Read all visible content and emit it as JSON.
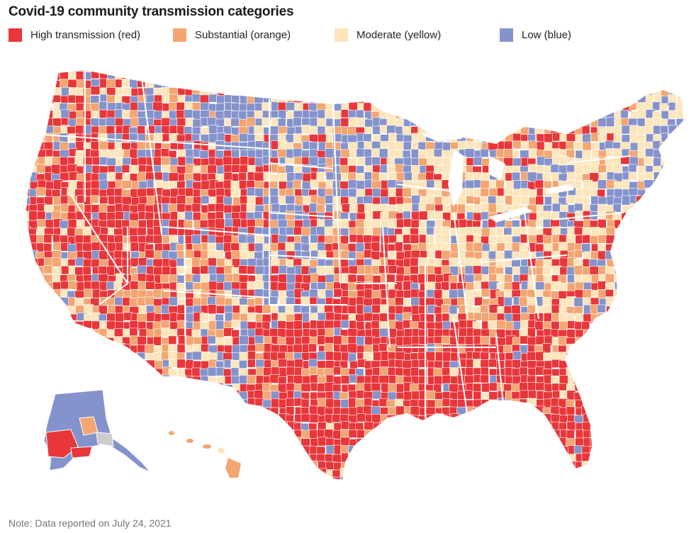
{
  "header": {
    "title": "Covid-19 community transmission categories"
  },
  "legend": {
    "items": [
      {
        "label": "High transmission (red)",
        "color": "#e8363a",
        "key": "high"
      },
      {
        "label": "Substantial (orange)",
        "color": "#f3a572",
        "key": "substantial"
      },
      {
        "label": "Moderate (yellow)",
        "color": "#fde5bc",
        "key": "moderate"
      },
      {
        "label": "Low (blue)",
        "color": "#8593cc",
        "key": "low"
      }
    ]
  },
  "colors": {
    "high": "#e8363a",
    "substantial": "#f3a572",
    "moderate": "#fde5bc",
    "low": "#8593cc",
    "no_data": "#cccccc",
    "border": "#ffffff"
  },
  "map": {
    "subject": "Contiguous United States, Alaska and Hawaii shaded by county transmission category",
    "regions": [
      {
        "name": "Pacific Northwest",
        "category": "high"
      },
      {
        "name": "California",
        "category": "substantial"
      },
      {
        "name": "Nevada",
        "category": "high"
      },
      {
        "name": "Utah",
        "category": "high"
      },
      {
        "name": "Arizona",
        "category": "substantial"
      },
      {
        "name": "New Mexico",
        "category": "low"
      },
      {
        "name": "Montana",
        "category": "low"
      },
      {
        "name": "Wyoming",
        "category": "high"
      },
      {
        "name": "Colorado",
        "category": "substantial"
      },
      {
        "name": "Northern Plains",
        "category": "low"
      },
      {
        "name": "Central Plains",
        "category": "low"
      },
      {
        "name": "Missouri / Arkansas",
        "category": "high"
      },
      {
        "name": "Texas",
        "category": "high"
      },
      {
        "name": "Louisiana",
        "category": "high"
      },
      {
        "name": "Deep South",
        "category": "high"
      },
      {
        "name": "Florida",
        "category": "high"
      },
      {
        "name": "Great Lakes",
        "category": "moderate"
      },
      {
        "name": "Ohio Valley",
        "category": "moderate"
      },
      {
        "name": "Appalachia",
        "category": "substantial"
      },
      {
        "name": "Northeast",
        "category": "moderate"
      },
      {
        "name": "New England",
        "category": "low"
      },
      {
        "name": "Alaska",
        "category": "low"
      },
      {
        "name": "Hawaii",
        "category": "substantial"
      }
    ]
  },
  "footer": {
    "note": "Note: Data reported on July 24, 2021"
  }
}
